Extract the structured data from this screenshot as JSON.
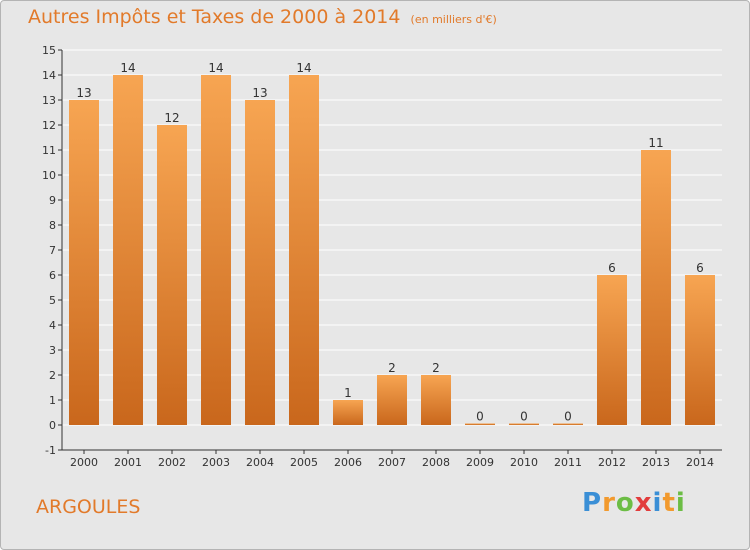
{
  "colors": {
    "accent": "#e27a2a",
    "bar_top": "#f7a552",
    "bar_bottom": "#c9671c",
    "axis": "#333333",
    "grid": "#ffffff",
    "plot_bg": "#e7e7e7"
  },
  "logo": {
    "letters": [
      {
        "ch": "P",
        "color": "#3a8fd6"
      },
      {
        "ch": "r",
        "color": "#f29a2e"
      },
      {
        "ch": "o",
        "color": "#6cbd45"
      },
      {
        "ch": "x",
        "color": "#e23c3c"
      },
      {
        "ch": "i",
        "color": "#3a8fd6"
      },
      {
        "ch": "t",
        "color": "#f29a2e"
      },
      {
        "ch": "i",
        "color": "#6cbd45"
      }
    ]
  },
  "chart_data": {
    "type": "bar",
    "title": "Autres Impôts et Taxes de 2000 à 2014",
    "unit_label": "(en milliers d'€)",
    "location": "ARGOULES",
    "categories": [
      "2000",
      "2001",
      "2002",
      "2003",
      "2004",
      "2005",
      "2006",
      "2007",
      "2008",
      "2009",
      "2010",
      "2011",
      "2012",
      "2013",
      "2014"
    ],
    "values": [
      13,
      14,
      12,
      14,
      13,
      14,
      1,
      2,
      2,
      0,
      0,
      0,
      6,
      11,
      6
    ],
    "ylim": [
      -1,
      15
    ],
    "yticks": [
      -1,
      0,
      1,
      2,
      3,
      4,
      5,
      6,
      7,
      8,
      9,
      10,
      11,
      12,
      13,
      14,
      15
    ],
    "grid": true,
    "legend": "none"
  }
}
